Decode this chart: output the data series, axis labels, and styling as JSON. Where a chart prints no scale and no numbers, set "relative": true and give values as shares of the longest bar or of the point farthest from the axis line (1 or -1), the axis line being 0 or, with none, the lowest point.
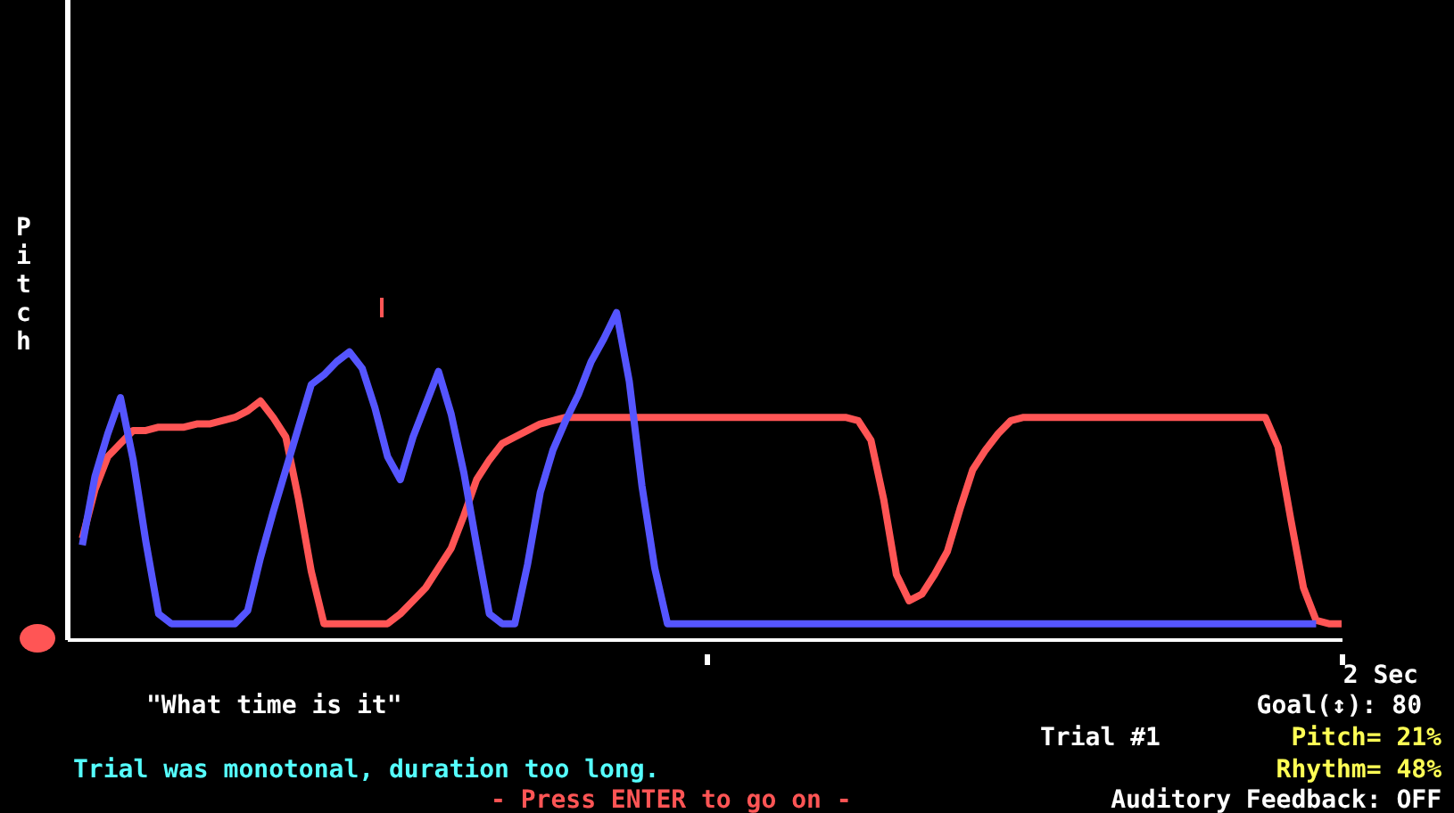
{
  "chart_data": {
    "type": "line",
    "title": "\"What time is it\"",
    "ylabel": "Pitch",
    "relative": true,
    "legend": false,
    "marker": "none",
    "line_style": "solid",
    "categories": [
      null,
      null,
      null,
      null,
      null,
      null,
      null,
      null,
      null,
      null,
      null,
      null,
      null,
      null,
      null,
      null,
      null,
      null,
      null,
      null,
      null,
      null,
      null,
      null,
      null,
      null,
      null,
      null,
      null,
      null,
      null,
      null,
      null,
      null,
      null,
      null,
      null,
      null,
      null,
      null,
      null,
      null,
      null,
      null,
      null,
      null,
      null,
      null,
      null,
      null,
      null,
      null,
      null,
      null,
      null,
      null,
      null,
      null,
      null,
      null,
      null,
      null,
      null,
      null,
      null,
      null,
      null,
      null,
      null,
      null,
      null,
      null,
      null,
      null,
      null,
      null,
      null,
      null,
      null,
      null,
      null,
      null,
      null,
      null,
      null,
      null,
      null,
      null,
      null,
      null,
      null,
      null,
      null,
      null,
      null,
      null,
      null,
      null,
      null,
      null,
      null
    ],
    "series": [
      {
        "color": "#5555ff",
        "values": [
          null,
          0.29,
          0.5,
          0.63,
          0.74,
          0.55,
          0.3,
          0.08,
          0.05,
          0.05,
          0.05,
          0.05,
          0.05,
          0.05,
          0.09,
          0.25,
          0.39,
          0.52,
          0.65,
          0.78,
          0.81,
          0.85,
          0.88,
          0.83,
          0.71,
          0.56,
          0.49,
          0.62,
          0.72,
          0.82,
          0.69,
          0.51,
          0.29,
          0.08,
          0.05,
          0.05,
          0.23,
          0.45,
          0.58,
          0.67,
          0.75,
          0.85,
          0.92,
          1,
          0.79,
          0.47,
          0.22,
          0.05,
          0.05,
          0.05,
          0.05,
          0.05,
          0.05,
          0.05,
          0.05,
          0.05,
          0.05,
          0.05,
          0.05,
          0.05,
          0.05,
          0.05,
          0.05,
          0.05,
          0.05,
          0.05,
          0.05,
          0.05,
          0.05,
          0.05,
          0.05,
          0.05,
          0.05,
          0.05,
          0.05,
          0.05,
          0.05,
          0.05,
          0.05,
          0.05,
          0.05,
          0.05,
          0.05,
          0.05,
          0.05,
          0.05,
          0.05,
          0.05,
          0.05,
          0.05,
          0.05,
          0.05,
          0.05,
          0.05,
          0.05,
          0.05,
          0.05,
          0.05,
          0.05,
          null,
          null
        ]
      },
      {
        "color": "#ff5555",
        "values": [
          null,
          0.31,
          0.46,
          0.56,
          0.6,
          0.64,
          0.64,
          0.65,
          0.65,
          0.65,
          0.66,
          0.66,
          0.67,
          0.68,
          0.7,
          0.73,
          0.68,
          0.62,
          0.43,
          0.21,
          0.05,
          0.05,
          0.05,
          0.05,
          0.05,
          0.05,
          0.08,
          0.12,
          0.16,
          0.22,
          0.28,
          0.38,
          0.49,
          0.55,
          0.6,
          0.62,
          0.64,
          0.66,
          0.67,
          0.68,
          0.68,
          0.68,
          0.68,
          0.68,
          0.68,
          0.68,
          0.68,
          0.68,
          0.68,
          0.68,
          0.68,
          0.68,
          0.68,
          0.68,
          0.68,
          0.68,
          0.68,
          0.68,
          0.68,
          0.68,
          0.68,
          0.68,
          0.67,
          0.61,
          0.43,
          0.2,
          0.12,
          0.14,
          0.2,
          0.27,
          0.4,
          0.52,
          0.58,
          0.63,
          0.67,
          0.68,
          0.68,
          0.68,
          0.68,
          0.68,
          0.68,
          0.68,
          0.68,
          0.68,
          0.68,
          0.68,
          0.68,
          0.68,
          0.68,
          0.68,
          0.68,
          0.68,
          0.68,
          0.68,
          0.68,
          0.59,
          0.37,
          0.16,
          0.06,
          0.05,
          0.05
        ]
      }
    ],
    "annotations": [
      "2 Sec",
      "Trial was monotonal, duration too long.",
      "- Press ENTER to go on -",
      "Goal(↕): 80",
      "Trial #1",
      "Pitch= 21%",
      "Rhythm= 48%",
      "Auditory Feedback: OFF"
    ]
  }
}
